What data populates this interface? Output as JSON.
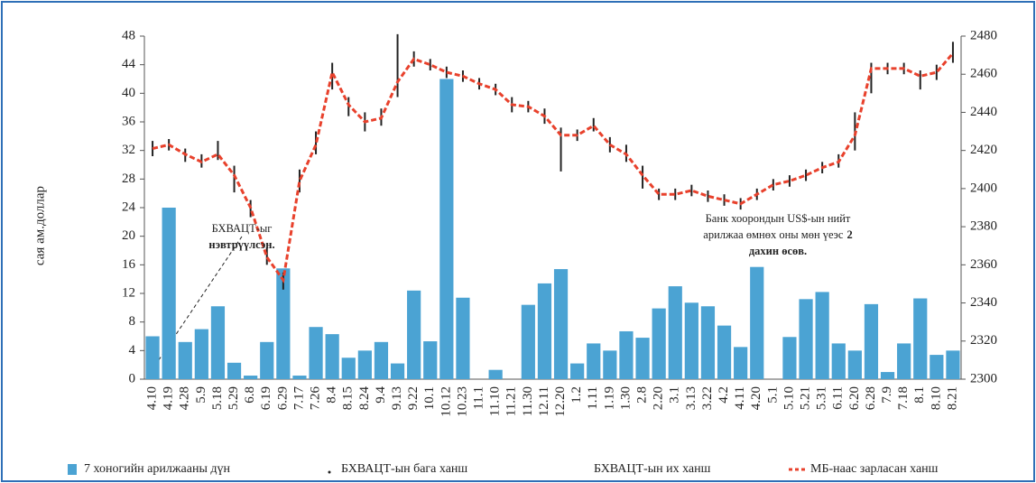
{
  "chart_data": {
    "type": "bar",
    "y_label": "сая ам.доллар",
    "categories": [
      "4.10",
      "4.19",
      "4.28",
      "5.9",
      "5.18",
      "5.29",
      "6.8",
      "6.19",
      "6.29",
      "7.17",
      "7.26",
      "8.4",
      "8.15",
      "8.24",
      "9.4",
      "9.13",
      "9.22",
      "10.1",
      "10.12",
      "10.23",
      "11.1",
      "11.10",
      "11.21",
      "11.30",
      "12.11",
      "12.20",
      "1.2",
      "1.11",
      "1.19",
      "1.30",
      "2.8",
      "2.20",
      "3.1",
      "3.13",
      "3.22",
      "4.2",
      "4.11",
      "4.20",
      "5.1",
      "5.10",
      "5.21",
      "5.31",
      "6.11",
      "6.20",
      "6.28",
      "7.9",
      "7.18",
      "8.1",
      "8.10",
      "8.21"
    ],
    "series": [
      {
        "name": "7 хоногийн арилжааны дүн",
        "color": "#4ba3d3",
        "axis": "y",
        "values": [
          6,
          24,
          5.2,
          7,
          10.2,
          2.3,
          0.5,
          5.2,
          15.5,
          0.5,
          7.3,
          6.3,
          3,
          4,
          5.2,
          2.2,
          12.4,
          5.3,
          42,
          11.4,
          0,
          1.3,
          0,
          10.4,
          13.4,
          15.4,
          2.2,
          5,
          4,
          6.7,
          5.8,
          9.9,
          13,
          10.7,
          10.2,
          7.5,
          4.5,
          15.7,
          0,
          5.9,
          11.2,
          12.2,
          5,
          4,
          10.5,
          1,
          5,
          11.3,
          3.4,
          4
        ]
      },
      {
        "name": "БХВАЦТ-ын бага ханш",
        "color": "#222222",
        "axis": "y2",
        "values": [
          2417,
          2420,
          2414,
          2411,
          2415,
          2398,
          2385,
          2360,
          2347,
          2398,
          2418,
          2452,
          2438,
          2430,
          2433,
          2448,
          2464,
          2462,
          2458,
          2456,
          2452,
          2449,
          2440,
          2440,
          2434,
          2409,
          2425,
          2430,
          2419,
          2414,
          2400,
          2394,
          2394,
          2396,
          2393,
          2391,
          2389,
          2394,
          2399,
          2401,
          2404,
          2408,
          2411,
          2420,
          2450,
          2460,
          2460,
          2452,
          2457,
          2466
        ]
      },
      {
        "name": "БХВАЦТ-ын их ханш",
        "color": "#222222",
        "axis": "y2",
        "values": [
          2425,
          2426,
          2421,
          2418,
          2425,
          2412,
          2394,
          2369,
          2356,
          2410,
          2430,
          2466,
          2448,
          2440,
          2442,
          2481,
          2472,
          2468,
          2464,
          2462,
          2458,
          2455,
          2448,
          2446,
          2442,
          2432,
          2431,
          2437,
          2427,
          2423,
          2412,
          2400,
          2400,
          2402,
          2399,
          2397,
          2395,
          2400,
          2405,
          2407,
          2410,
          2414,
          2418,
          2440,
          2466,
          2466,
          2466,
          2462,
          2465,
          2477
        ]
      },
      {
        "name": "МБ-наас зарласан ханш",
        "color": "#e8412c",
        "axis": "y2",
        "values": [
          2421,
          2423,
          2418,
          2414,
          2418,
          2407,
          2390,
          2364,
          2352,
          2404,
          2423,
          2461,
          2444,
          2435,
          2437,
          2456,
          2468,
          2465,
          2461,
          2459,
          2455,
          2452,
          2444,
          2443,
          2438,
          2428,
          2428,
          2433,
          2423,
          2418,
          2407,
          2397,
          2397,
          2399,
          2396,
          2394,
          2392,
          2397,
          2402,
          2404,
          2407,
          2411,
          2414,
          2428,
          2463,
          2463,
          2463,
          2459,
          2461,
          2471
        ]
      }
    ],
    "ylim": [
      0,
      48
    ],
    "yticks": [
      0,
      4,
      8,
      12,
      16,
      20,
      24,
      28,
      32,
      36,
      40,
      44,
      48
    ],
    "y2lim": [
      2300,
      2480
    ],
    "y2ticks": [
      2300,
      2320,
      2340,
      2360,
      2380,
      2400,
      2420,
      2440,
      2460,
      2480
    ],
    "annotations": [
      {
        "parts": [
          {
            "text": "БХВАЦТ-ыг",
            "bold": false
          },
          {
            "text": "нэвтрүүлсэн.",
            "bold": true
          }
        ]
      },
      {
        "parts": [
          {
            "text": "Банк хоорондын US$-ын нийт",
            "bold": false
          },
          {
            "text": "арилжаа өмнөх оны мөн үеэс",
            "bold": false
          },
          {
            "text": "2",
            "bold": true
          },
          {
            "text": "дахин өсөв.",
            "bold": true
          }
        ]
      }
    ],
    "legend": "bottom"
  }
}
